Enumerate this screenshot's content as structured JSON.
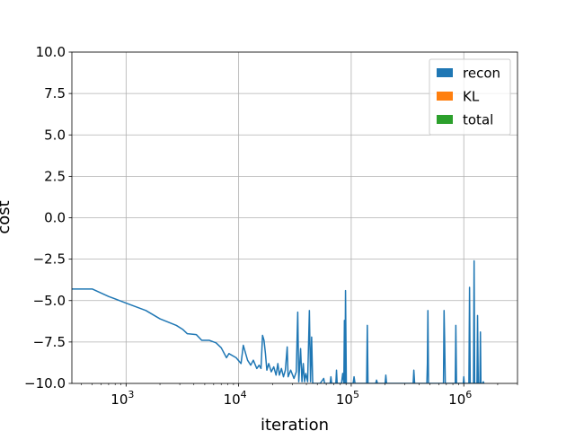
{
  "chart_data": {
    "type": "line",
    "title": "",
    "xlabel": "iteration",
    "ylabel": "cost",
    "xscale": "log",
    "xlim": [
      330,
      3000000
    ],
    "ylim": [
      -10,
      10
    ],
    "grid": true,
    "legend_position": "upper right",
    "x_ticks": [
      {
        "value": 1000,
        "base": "10",
        "exp": "3"
      },
      {
        "value": 10000,
        "base": "10",
        "exp": "4"
      },
      {
        "value": 100000,
        "base": "10",
        "exp": "5"
      },
      {
        "value": 1000000,
        "base": "10",
        "exp": "6"
      }
    ],
    "y_ticks": [
      {
        "value": 10,
        "label": "10.0"
      },
      {
        "value": 7.5,
        "label": "7.5"
      },
      {
        "value": 5,
        "label": "5.0"
      },
      {
        "value": 2.5,
        "label": "2.5"
      },
      {
        "value": 0,
        "label": "0.0"
      },
      {
        "value": -2.5,
        "label": "−2.5"
      },
      {
        "value": -5,
        "label": "−5.0"
      },
      {
        "value": -7.5,
        "label": "−7.5"
      },
      {
        "value": -10,
        "label": "−10.0"
      }
    ],
    "legend": [
      {
        "name": "recon",
        "color": "#1f77b4"
      },
      {
        "name": "KL",
        "color": "#ff7f0e"
      },
      {
        "name": "total",
        "color": "#2ca02c"
      }
    ],
    "series": [
      {
        "name": "recon",
        "color": "#1f77b4",
        "points": [
          [
            330,
            -4.3
          ],
          [
            500,
            -4.3
          ],
          [
            700,
            -4.75
          ],
          [
            1000,
            -5.15
          ],
          [
            1500,
            -5.6
          ],
          [
            2000,
            -6.1
          ],
          [
            2800,
            -6.5
          ],
          [
            3200,
            -6.75
          ],
          [
            3500,
            -7.0
          ],
          [
            4200,
            -7.05
          ],
          [
            4700,
            -7.4
          ],
          [
            5500,
            -7.4
          ],
          [
            6300,
            -7.55
          ],
          [
            7000,
            -7.85
          ],
          [
            7800,
            -8.45
          ],
          [
            8200,
            -8.2
          ],
          [
            9500,
            -8.45
          ],
          [
            10500,
            -8.8
          ],
          [
            11000,
            -7.7
          ],
          [
            12000,
            -8.6
          ],
          [
            12800,
            -8.9
          ],
          [
            13500,
            -8.6
          ],
          [
            14500,
            -9.1
          ],
          [
            15200,
            -8.9
          ],
          [
            15800,
            -9.1
          ],
          [
            16300,
            -7.1
          ],
          [
            16800,
            -7.4
          ],
          [
            17300,
            -8.2
          ],
          [
            17800,
            -9.2
          ],
          [
            18500,
            -8.8
          ],
          [
            19500,
            -9.3
          ],
          [
            20500,
            -9.0
          ],
          [
            21500,
            -9.5
          ],
          [
            22300,
            -8.8
          ],
          [
            23000,
            -9.5
          ],
          [
            24000,
            -9.1
          ],
          [
            25000,
            -9.6
          ],
          [
            26000,
            -9.2
          ],
          [
            27000,
            -7.8
          ],
          [
            27500,
            -9.6
          ],
          [
            29000,
            -9.2
          ],
          [
            31000,
            -9.7
          ],
          [
            32500,
            -9.3
          ],
          [
            33500,
            -5.7
          ],
          [
            34200,
            -9.9
          ],
          [
            35500,
            -7.9
          ],
          [
            36500,
            -9.9
          ],
          [
            37500,
            -8.8
          ],
          [
            38500,
            -9.9
          ],
          [
            39500,
            -9.4
          ],
          [
            41000,
            -9.9
          ],
          [
            42500,
            -5.6
          ],
          [
            43500,
            -9.9
          ],
          [
            44500,
            -7.2
          ],
          [
            45500,
            -10
          ],
          [
            53000,
            -10
          ],
          [
            57000,
            -9.7
          ],
          [
            58000,
            -10
          ],
          [
            65000,
            -10
          ],
          [
            66000,
            -9.6
          ],
          [
            67000,
            -10
          ],
          [
            73000,
            -10
          ],
          [
            74000,
            -9.2
          ],
          [
            75000,
            -10
          ],
          [
            82000,
            -10
          ],
          [
            84000,
            -9.4
          ],
          [
            86000,
            -10
          ],
          [
            87000,
            -6.2
          ],
          [
            88000,
            -10
          ],
          [
            89000,
            -4.4
          ],
          [
            90500,
            -10
          ],
          [
            104000,
            -10
          ],
          [
            106000,
            -9.6
          ],
          [
            108000,
            -10
          ],
          [
            137000,
            -10
          ],
          [
            139000,
            -6.5
          ],
          [
            141000,
            -10
          ],
          [
            165000,
            -10
          ],
          [
            168000,
            -9.8
          ],
          [
            171000,
            -10
          ],
          [
            200000,
            -10
          ],
          [
            203000,
            -9.5
          ],
          [
            206000,
            -10
          ],
          [
            355000,
            -10
          ],
          [
            360000,
            -9.2
          ],
          [
            366000,
            -10
          ],
          [
            470000,
            -10
          ],
          [
            475000,
            -8.8
          ],
          [
            480000,
            -5.6
          ],
          [
            486000,
            -10
          ],
          [
            660000,
            -10
          ],
          [
            668000,
            -5.6
          ],
          [
            676000,
            -7.4
          ],
          [
            685000,
            -10
          ],
          [
            840000,
            -10
          ],
          [
            850000,
            -6.5
          ],
          [
            862000,
            -10
          ],
          [
            990000,
            -10
          ],
          [
            1000000,
            -9.6
          ],
          [
            1010000,
            -10
          ],
          [
            1110000,
            -10
          ],
          [
            1125000,
            -4.2
          ],
          [
            1140000,
            -10
          ],
          [
            1220000,
            -10
          ],
          [
            1235000,
            -2.6
          ],
          [
            1250000,
            -10
          ],
          [
            1310000,
            -10
          ],
          [
            1325000,
            -5.9
          ],
          [
            1345000,
            -10
          ],
          [
            1390000,
            -10
          ],
          [
            1405000,
            -6.9
          ],
          [
            1420000,
            -10
          ],
          [
            1470000,
            -10
          ],
          [
            1490000,
            -9.9
          ],
          [
            1510000,
            -10
          ]
        ]
      }
    ]
  }
}
